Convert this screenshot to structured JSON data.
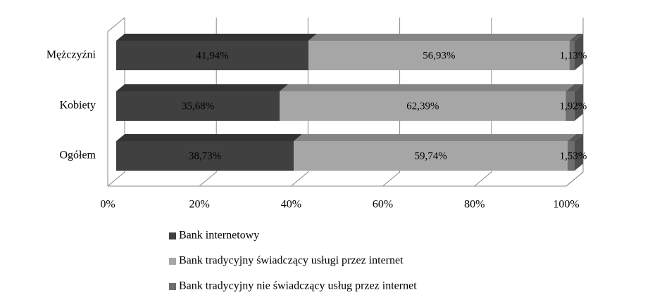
{
  "chart_data": {
    "type": "bar3d_stacked_horizontal",
    "categories": [
      "Mężczyźni",
      "Kobiety",
      "Ogółem"
    ],
    "series": [
      {
        "name": "Bank internetowy",
        "color": "#404040",
        "values": [
          41.94,
          35.68,
          38.73
        ],
        "value_labels": [
          "41,94%",
          "35,68%",
          "38,73%"
        ]
      },
      {
        "name": "Bank tradycyjny świadczący usługi przez internet",
        "color": "#a6a6a6",
        "values": [
          56.93,
          62.39,
          59.74
        ],
        "value_labels": [
          "56,93%",
          "62,39%",
          "59,74%"
        ]
      },
      {
        "name": "Bank tradycyjny nie świadczący usług przez internet",
        "color": "#6e6e6e",
        "values": [
          1.13,
          1.92,
          1.53
        ],
        "value_labels": [
          "1,13%",
          "1,92%",
          "1,53%"
        ]
      }
    ],
    "xlim": [
      0,
      100
    ],
    "xticks": [
      {
        "value": 0,
        "label": "0%"
      },
      {
        "value": 20,
        "label": "20%"
      },
      {
        "value": 40,
        "label": "40%"
      },
      {
        "value": 60,
        "label": "60%"
      },
      {
        "value": 80,
        "label": "80%"
      },
      {
        "value": 100,
        "label": "100%"
      }
    ],
    "grid": true,
    "legend": "bottom"
  }
}
